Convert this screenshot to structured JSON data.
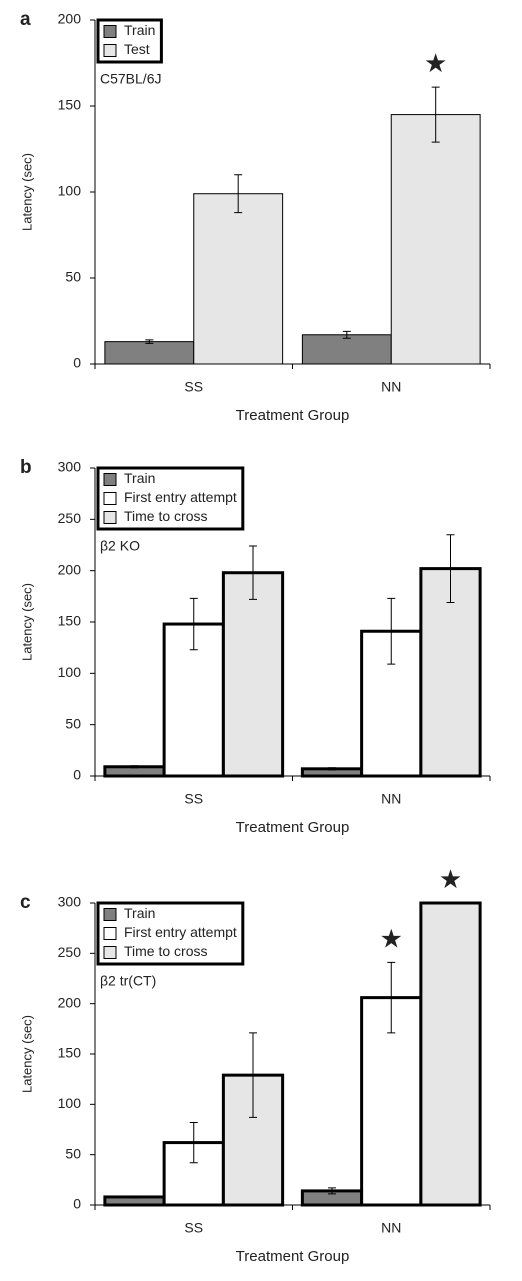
{
  "chart_data": [
    {
      "type": "bar",
      "panel_label": "a",
      "annotation": "C57BL/6J",
      "ylabel": "Latency (sec)",
      "xlabel": "Treatment Group",
      "categories": [
        "SS",
        "NN"
      ],
      "series": [
        {
          "name": "Train",
          "color": "#808080",
          "values": [
            13,
            17
          ],
          "errors": [
            1,
            2
          ],
          "significance": [
            null,
            null
          ]
        },
        {
          "name": "Test",
          "color": "#e6e6e6",
          "values": [
            99,
            145
          ],
          "errors": [
            11,
            16
          ],
          "significance": [
            null,
            "★"
          ]
        }
      ],
      "ylim": [
        0,
        200
      ],
      "yticks": [
        0,
        50,
        100,
        150,
        200
      ],
      "legend": "upper-left"
    },
    {
      "type": "bar",
      "panel_label": "b",
      "annotation": "β2 KO",
      "ylabel": "Latency (sec)",
      "xlabel": "Treatment Group",
      "categories": [
        "SS",
        "NN"
      ],
      "series": [
        {
          "name": "Train",
          "color": "#808080",
          "values": [
            9,
            7
          ],
          "errors": [
            1,
            1
          ],
          "significance": [
            null,
            null
          ]
        },
        {
          "name": "First entry attempt",
          "color": "#ffffff",
          "values": [
            148,
            141
          ],
          "errors": [
            25,
            32
          ],
          "significance": [
            null,
            null
          ]
        },
        {
          "name": "Time to cross",
          "color": "#e6e6e6",
          "values": [
            198,
            202
          ],
          "errors": [
            26,
            33
          ],
          "significance": [
            null,
            null
          ]
        }
      ],
      "ylim": [
        0,
        300
      ],
      "yticks": [
        0,
        50,
        100,
        150,
        200,
        250,
        300
      ],
      "legend": "upper-left"
    },
    {
      "type": "bar",
      "panel_label": "c",
      "annotation": "β2 tr(CT)",
      "ylabel": "Latency (sec)",
      "xlabel": "Treatment Group",
      "categories": [
        "SS",
        "NN"
      ],
      "series": [
        {
          "name": "Train",
          "color": "#808080",
          "values": [
            8,
            14
          ],
          "errors": [
            1,
            3
          ],
          "significance": [
            null,
            null
          ]
        },
        {
          "name": "First entry attempt",
          "color": "#ffffff",
          "values": [
            62,
            206
          ],
          "errors": [
            20,
            35
          ],
          "significance": [
            null,
            "★"
          ]
        },
        {
          "name": "Time to cross",
          "color": "#e6e6e6",
          "values": [
            129,
            300
          ],
          "errors": [
            42,
            0
          ],
          "significance": [
            null,
            "★"
          ]
        }
      ],
      "ylim": [
        0,
        300
      ],
      "yticks": [
        0,
        50,
        100,
        150,
        200,
        250,
        300
      ],
      "legend": "upper-left"
    }
  ]
}
